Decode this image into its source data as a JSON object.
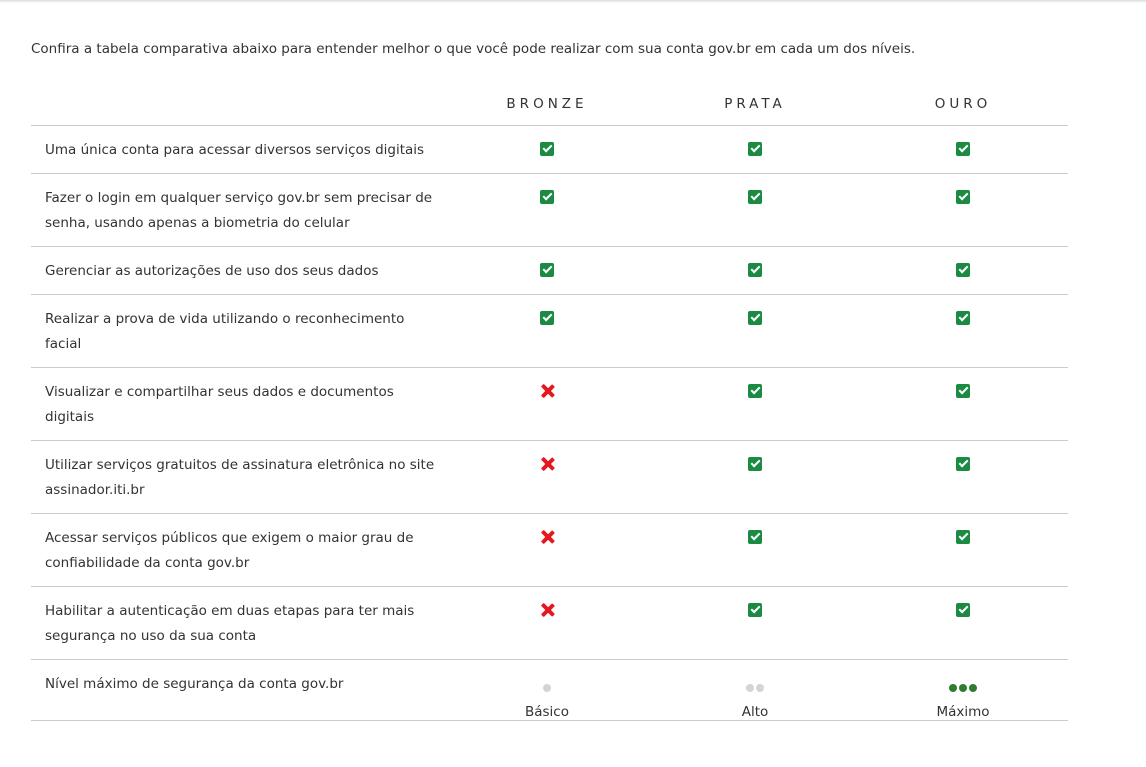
{
  "intro": "Confira a tabela comparativa abaixo para entender melhor o que você pode realizar com sua conta gov.br em cada um dos níveis.",
  "columns": [
    "BRONZE",
    "PRATA",
    "OURO"
  ],
  "rows": [
    {
      "feature": "Uma única conta para acessar diversos serviços digitais",
      "bronze": "check",
      "prata": "check",
      "ouro": "check"
    },
    {
      "feature": "Fazer o login em qualquer serviço gov.br sem precisar de senha, usando apenas a biometria do celular",
      "bronze": "check",
      "prata": "check",
      "ouro": "check"
    },
    {
      "feature": "Gerenciar as autorizações de uso dos seus dados",
      "bronze": "check",
      "prata": "check",
      "ouro": "check"
    },
    {
      "feature": "Realizar a prova de vida utilizando o reconhecimento facial",
      "bronze": "check",
      "prata": "check",
      "ouro": "check"
    },
    {
      "feature": "Visualizar e compartilhar seus dados e documentos digitais",
      "bronze": "cross",
      "prata": "check",
      "ouro": "check"
    },
    {
      "feature": "Utilizar serviços gratuitos de assinatura eletrônica no site assinador.iti.br",
      "bronze": "cross",
      "prata": "check",
      "ouro": "check"
    },
    {
      "feature": "Acessar serviços públicos que exigem o maior grau de confiabilidade da conta gov.br",
      "bronze": "cross",
      "prata": "check",
      "ouro": "check"
    },
    {
      "feature": "Habilitar a autenticação em duas etapas para ter mais segurança no uso da  sua conta",
      "bronze": "cross",
      "prata": "check",
      "ouro": "check"
    }
  ],
  "security_row": {
    "feature": "Nível máximo de segurança da conta gov.br",
    "levels": [
      {
        "label": "Básico",
        "dots": 1,
        "color": "#d4d4d4"
      },
      {
        "label": "Alto",
        "dots": 2,
        "color": "#d4d4d4"
      },
      {
        "label": "Máximo",
        "dots": 3,
        "color": "#2e7d32"
      }
    ]
  },
  "icons": {
    "check": "check-square-icon",
    "cross": "x-mark-icon"
  },
  "colors": {
    "check": "#1b8a43",
    "cross": "#e5171f",
    "border": "#c9cbcd",
    "text": "#333333"
  }
}
